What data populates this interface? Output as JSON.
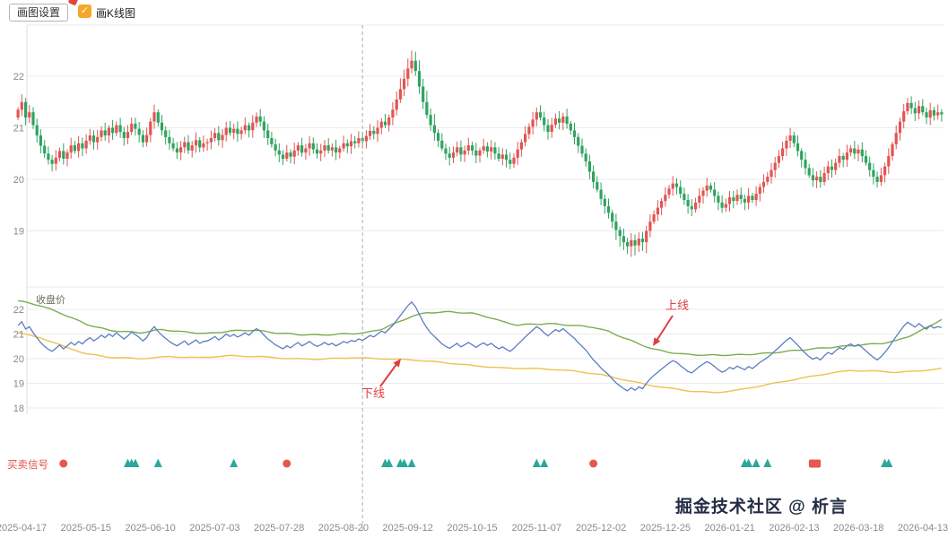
{
  "toolbar": {
    "settings_button": "画图设置",
    "kline_checkbox_label": "画K线图",
    "checkbox_checked": true,
    "checkbox_check_glyph": "✓"
  },
  "signal_row_label": "买卖信号",
  "annotations": {
    "upper": "上线",
    "lower": "下线"
  },
  "watermark": "掘金技术社区 @ 析言",
  "colors": {
    "up_candle": "#e15552",
    "down_candle": "#2fa360",
    "close_line": "#5a7dc4",
    "upper_line": "#7bae4f",
    "lower_line": "#ecc24f",
    "buy_marker": "#2aa89c",
    "sell_marker": "#e4584f",
    "annotation": "#e03e3e",
    "checkbox": "#f7a728",
    "grid": "#ebebeb",
    "tick_text": "#888888"
  },
  "chart_data": {
    "type": "candlestick",
    "title": "",
    "legend_position": "top-left-of-band-panel",
    "grid": true,
    "x_axis_dates": [
      "2025-04-17",
      "2025-05-15",
      "2025-06-10",
      "2025-07-03",
      "2025-07-28",
      "2025-08-20",
      "2025-09-12",
      "2025-10-15",
      "2025-11-07",
      "2025-12-02",
      "2025-12-25",
      "2026-01-21",
      "2026-02-13",
      "2026-03-18",
      "2026-04-13"
    ],
    "main_panel": {
      "ylim": [
        18.4,
        22.6
      ],
      "yticks": [
        22,
        21,
        20,
        19
      ],
      "first_open": 21.2,
      "closes": [
        21.35,
        21.5,
        21.2,
        21.3,
        21.05,
        20.85,
        20.65,
        20.5,
        20.38,
        20.3,
        20.42,
        20.55,
        20.4,
        20.52,
        20.66,
        20.55,
        20.7,
        20.6,
        20.75,
        20.85,
        20.72,
        20.82,
        20.95,
        20.85,
        21.0,
        20.9,
        21.05,
        20.92,
        20.8,
        20.92,
        21.08,
        20.98,
        20.86,
        20.72,
        20.86,
        21.12,
        21.3,
        21.1,
        20.95,
        20.82,
        20.7,
        20.6,
        20.52,
        20.62,
        20.72,
        20.56,
        20.66,
        20.76,
        20.62,
        20.7,
        20.72,
        20.8,
        20.9,
        20.76,
        20.86,
        21.0,
        20.9,
        20.98,
        20.88,
        20.95,
        21.05,
        20.95,
        21.1,
        21.22,
        21.12,
        20.95,
        20.8,
        20.68,
        20.56,
        20.48,
        20.4,
        20.52,
        20.44,
        20.56,
        20.66,
        20.52,
        20.6,
        20.7,
        20.58,
        20.5,
        20.56,
        20.66,
        20.56,
        20.62,
        20.52,
        20.6,
        20.7,
        20.64,
        20.74,
        20.7,
        20.8,
        20.74,
        20.84,
        20.94,
        20.88,
        21.0,
        21.12,
        21.05,
        21.2,
        21.35,
        21.55,
        21.75,
        21.95,
        22.15,
        22.3,
        22.1,
        21.8,
        21.5,
        21.25,
        21.05,
        20.9,
        20.75,
        20.6,
        20.5,
        20.42,
        20.52,
        20.62,
        20.48,
        20.56,
        20.66,
        20.56,
        20.46,
        20.56,
        20.64,
        20.54,
        20.62,
        20.5,
        20.4,
        20.48,
        20.38,
        20.3,
        20.42,
        20.58,
        20.72,
        20.88,
        21.02,
        21.16,
        21.3,
        21.2,
        21.05,
        20.92,
        21.06,
        21.18,
        21.1,
        21.22,
        21.08,
        20.95,
        20.82,
        20.65,
        20.5,
        20.35,
        20.15,
        19.95,
        19.8,
        19.62,
        19.48,
        19.35,
        19.18,
        19.02,
        18.9,
        18.78,
        18.7,
        18.82,
        18.72,
        18.85,
        18.78,
        19.0,
        19.18,
        19.32,
        19.45,
        19.58,
        19.7,
        19.82,
        19.92,
        19.85,
        19.72,
        19.6,
        19.48,
        19.42,
        19.55,
        19.68,
        19.78,
        19.88,
        19.8,
        19.68,
        19.55,
        19.45,
        19.52,
        19.65,
        19.58,
        19.7,
        19.62,
        19.55,
        19.68,
        19.6,
        19.72,
        19.85,
        19.95,
        20.05,
        20.18,
        20.32,
        20.45,
        20.6,
        20.75,
        20.85,
        20.7,
        20.55,
        20.38,
        20.22,
        20.08,
        19.98,
        20.05,
        19.95,
        20.12,
        20.25,
        20.18,
        20.32,
        20.45,
        20.38,
        20.52,
        20.6,
        20.5,
        20.58,
        20.45,
        20.32,
        20.18,
        20.05,
        19.95,
        20.08,
        20.25,
        20.45,
        20.68,
        20.9,
        21.12,
        21.32,
        21.48,
        21.38,
        21.28,
        21.42,
        21.3,
        21.2,
        21.34,
        21.24,
        21.3,
        21.26
      ]
    },
    "band_panel": {
      "legend": "收盘价",
      "ylim": [
        18,
        22.5
      ],
      "yticks": [
        22,
        21,
        20,
        19,
        18
      ],
      "upper_keypoints": [
        [
          0,
          22.35
        ],
        [
          6,
          22.15
        ],
        [
          12,
          21.8
        ],
        [
          18,
          21.4
        ],
        [
          24,
          21.15
        ],
        [
          32,
          21.05
        ],
        [
          38,
          21.18
        ],
        [
          44,
          21.08
        ],
        [
          50,
          21.02
        ],
        [
          56,
          21.12
        ],
        [
          62,
          21.16
        ],
        [
          68,
          21.05
        ],
        [
          74,
          20.98
        ],
        [
          80,
          20.96
        ],
        [
          86,
          21.0
        ],
        [
          92,
          21.05
        ],
        [
          96,
          21.2
        ],
        [
          100,
          21.45
        ],
        [
          104,
          21.72
        ],
        [
          108,
          21.86
        ],
        [
          114,
          21.9
        ],
        [
          120,
          21.84
        ],
        [
          124,
          21.7
        ],
        [
          128,
          21.5
        ],
        [
          132,
          21.36
        ],
        [
          136,
          21.4
        ],
        [
          140,
          21.42
        ],
        [
          144,
          21.38
        ],
        [
          148,
          21.33
        ],
        [
          152,
          21.28
        ],
        [
          156,
          21.1
        ],
        [
          160,
          20.85
        ],
        [
          164,
          20.6
        ],
        [
          168,
          20.38
        ],
        [
          172,
          20.26
        ],
        [
          176,
          20.18
        ],
        [
          182,
          20.14
        ],
        [
          190,
          20.15
        ],
        [
          198,
          20.22
        ],
        [
          206,
          20.34
        ],
        [
          214,
          20.45
        ],
        [
          222,
          20.55
        ],
        [
          228,
          20.62
        ],
        [
          232,
          20.72
        ],
        [
          236,
          20.95
        ],
        [
          240,
          21.25
        ],
        [
          244,
          21.6
        ]
      ],
      "lower_keypoints": [
        [
          0,
          21.05
        ],
        [
          6,
          20.85
        ],
        [
          12,
          20.5
        ],
        [
          18,
          20.2
        ],
        [
          24,
          20.06
        ],
        [
          32,
          20.0
        ],
        [
          40,
          20.08
        ],
        [
          48,
          20.04
        ],
        [
          56,
          20.12
        ],
        [
          64,
          20.08
        ],
        [
          72,
          20.0
        ],
        [
          80,
          19.98
        ],
        [
          88,
          20.04
        ],
        [
          96,
          20.0
        ],
        [
          104,
          19.95
        ],
        [
          112,
          19.85
        ],
        [
          120,
          19.72
        ],
        [
          128,
          19.62
        ],
        [
          136,
          19.6
        ],
        [
          142,
          19.56
        ],
        [
          148,
          19.48
        ],
        [
          154,
          19.35
        ],
        [
          160,
          19.15
        ],
        [
          166,
          18.95
        ],
        [
          172,
          18.8
        ],
        [
          178,
          18.68
        ],
        [
          184,
          18.62
        ],
        [
          190,
          18.72
        ],
        [
          198,
          18.95
        ],
        [
          206,
          19.18
        ],
        [
          214,
          19.4
        ],
        [
          220,
          19.52
        ],
        [
          226,
          19.5
        ],
        [
          232,
          19.45
        ],
        [
          238,
          19.5
        ],
        [
          244,
          19.6
        ]
      ]
    },
    "signals": [
      {
        "i": 12,
        "type": "sell",
        "shape": "circle"
      },
      {
        "i": 29,
        "type": "buy",
        "shape": "triangle"
      },
      {
        "i": 30,
        "type": "buy",
        "shape": "triangle"
      },
      {
        "i": 31,
        "type": "buy",
        "shape": "triangle"
      },
      {
        "i": 37,
        "type": "buy",
        "shape": "triangle"
      },
      {
        "i": 57,
        "type": "buy",
        "shape": "triangle"
      },
      {
        "i": 71,
        "type": "sell",
        "shape": "circle"
      },
      {
        "i": 97,
        "type": "buy",
        "shape": "triangle"
      },
      {
        "i": 98,
        "type": "buy",
        "shape": "triangle"
      },
      {
        "i": 101,
        "type": "buy",
        "shape": "triangle"
      },
      {
        "i": 102,
        "type": "buy",
        "shape": "triangle"
      },
      {
        "i": 104,
        "type": "buy",
        "shape": "triangle"
      },
      {
        "i": 137,
        "type": "buy",
        "shape": "triangle"
      },
      {
        "i": 139,
        "type": "buy",
        "shape": "triangle"
      },
      {
        "i": 152,
        "type": "sell",
        "shape": "circle"
      },
      {
        "i": 192,
        "type": "buy",
        "shape": "triangle"
      },
      {
        "i": 193,
        "type": "buy",
        "shape": "triangle"
      },
      {
        "i": 195,
        "type": "buy",
        "shape": "triangle"
      },
      {
        "i": 198,
        "type": "buy",
        "shape": "triangle"
      },
      {
        "i": 210,
        "type": "sell",
        "shape": "square"
      },
      {
        "i": 211,
        "type": "sell",
        "shape": "square"
      },
      {
        "i": 229,
        "type": "buy",
        "shape": "triangle"
      },
      {
        "i": 230,
        "type": "buy",
        "shape": "triangle"
      }
    ],
    "crosshair_index": 91.5
  }
}
